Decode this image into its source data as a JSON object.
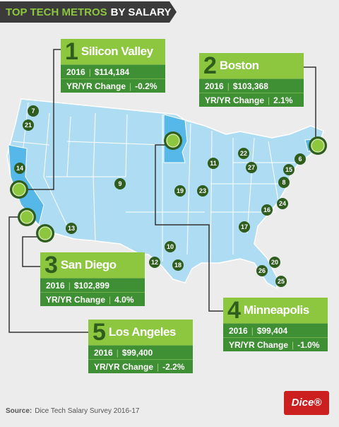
{
  "title": {
    "highlight": "TOP TECH METROS",
    "rest": "BY SALARY"
  },
  "callouts": [
    {
      "rank": "1",
      "city": "Silicon Valley",
      "year": "2016",
      "salary": "$114,184",
      "change_label": "YR/YR Change",
      "change": "-0.2%"
    },
    {
      "rank": "2",
      "city": "Boston",
      "year": "2016",
      "salary": "$103,368",
      "change_label": "YR/YR Change",
      "change": "2.1%"
    },
    {
      "rank": "3",
      "city": "San Diego",
      "year": "2016",
      "salary": "$102,899",
      "change_label": "YR/YR Change",
      "change": "4.0%"
    },
    {
      "rank": "4",
      "city": "Minneapolis",
      "year": "2016",
      "salary": "$99,404",
      "change_label": "YR/YR Change",
      "change": "-1.0%"
    },
    {
      "rank": "5",
      "city": "Los Angeles",
      "year": "2016",
      "salary": "$99,400",
      "change_label": "YR/YR Change",
      "change": "-2.2%"
    }
  ],
  "markers": [
    "7",
    "21",
    "14",
    "9",
    "11",
    "22",
    "27",
    "6",
    "15",
    "8",
    "19",
    "23",
    "24",
    "16",
    "13",
    "17",
    "10",
    "12",
    "18",
    "20",
    "26",
    "25"
  ],
  "source": {
    "label": "Source:",
    "text": "Dice Tech Salary Survey 2016-17"
  },
  "logo": "Dice®"
}
